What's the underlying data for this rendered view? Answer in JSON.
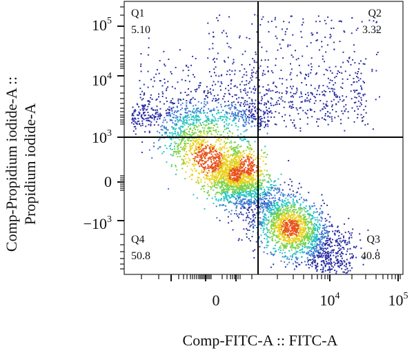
{
  "chart_data": {
    "type": "scatter",
    "title": "",
    "xlabel": "Comp-FITC-A :: FITC-A",
    "ylabel_line1": "Comp-Propidium iodide-A ::",
    "ylabel_line2": "Propidium iodide-A",
    "x_scale": "biexponential",
    "y_scale": "biexponential",
    "x_ticks": [
      {
        "base": "0",
        "exp": ""
      },
      {
        "base": "10",
        "exp": "4"
      },
      {
        "base": "10",
        "exp": "5"
      }
    ],
    "y_ticks": [
      {
        "base": "10",
        "exp": "5"
      },
      {
        "base": "10",
        "exp": "4"
      },
      {
        "base": "10",
        "exp": "3"
      },
      {
        "base": "0",
        "exp": ""
      },
      {
        "base": "−10",
        "exp": "3"
      }
    ],
    "quadrants": [
      {
        "name": "Q1",
        "value": "5.10"
      },
      {
        "name": "Q2",
        "value": "3.32"
      },
      {
        "name": "Q3",
        "value": "40.8"
      },
      {
        "name": "Q4",
        "value": "50.8"
      }
    ],
    "gate_x_value": "between 0 and 10^4",
    "gate_y_value": "10^3",
    "density_colormap": [
      "#2b2fa3",
      "#3a78d0",
      "#27c4c4",
      "#7ad24a",
      "#e8d21e",
      "#e8531c"
    ],
    "grid": false
  }
}
